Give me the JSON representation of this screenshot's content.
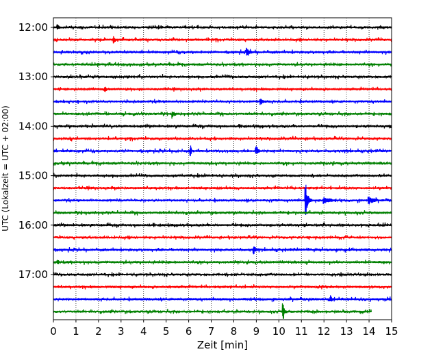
{
  "chart_data": {
    "type": "line",
    "title": "",
    "xlabel": "Zeit  [min]",
    "ylabel": "UTC (Lokalzeit = UTC + 02:00)",
    "xlim": [
      0,
      15
    ],
    "x_ticks": [
      "0",
      "1",
      "2",
      "3",
      "4",
      "5",
      "6",
      "7",
      "8",
      "9",
      "10",
      "11",
      "12",
      "13",
      "14",
      "15"
    ],
    "y_ticks": [
      "12:00",
      "13:00",
      "14:00",
      "15:00",
      "16:00",
      "17:00"
    ],
    "grid": "vertical dotted at each minute",
    "trace_colors": [
      "#000000",
      "#ff0000",
      "#0000ff",
      "#008000"
    ],
    "traces": [
      {
        "start": "12:00",
        "color": "#000000"
      },
      {
        "start": "12:15",
        "color": "#ff0000"
      },
      {
        "start": "12:30",
        "color": "#0000ff"
      },
      {
        "start": "12:45",
        "color": "#008000"
      },
      {
        "start": "13:00",
        "color": "#000000"
      },
      {
        "start": "13:15",
        "color": "#ff0000"
      },
      {
        "start": "13:30",
        "color": "#0000ff"
      },
      {
        "start": "13:45",
        "color": "#008000"
      },
      {
        "start": "14:00",
        "color": "#000000"
      },
      {
        "start": "14:15",
        "color": "#ff0000"
      },
      {
        "start": "14:30",
        "color": "#0000ff"
      },
      {
        "start": "14:45",
        "color": "#008000"
      },
      {
        "start": "15:00",
        "color": "#000000"
      },
      {
        "start": "15:15",
        "color": "#ff0000"
      },
      {
        "start": "15:30",
        "color": "#0000ff"
      },
      {
        "start": "15:45",
        "color": "#008000"
      },
      {
        "start": "16:00",
        "color": "#000000"
      },
      {
        "start": "16:15",
        "color": "#ff0000"
      },
      {
        "start": "16:30",
        "color": "#0000ff"
      },
      {
        "start": "16:45",
        "color": "#008000"
      },
      {
        "start": "17:00",
        "color": "#000000"
      },
      {
        "start": "17:15",
        "color": "#ff0000"
      },
      {
        "start": "17:30",
        "color": "#0000ff"
      },
      {
        "start": "17:45",
        "color": "#008000"
      }
    ]
  }
}
